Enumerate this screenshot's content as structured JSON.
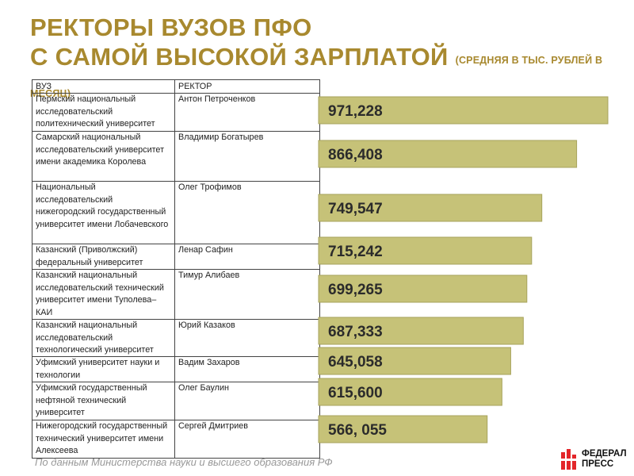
{
  "title": {
    "line1": "РЕКТОРЫ ВУЗОВ ПФО",
    "line2": "С САМОЙ ВЫСОКОЙ ЗАРПЛАТОЙ",
    "subtitle": "(СРЕДНЯЯ В ТЫС. РУБЛЕЙ В МЕСЯЦ)"
  },
  "table": {
    "headers": [
      "ВУЗ",
      "РЕКТОР"
    ],
    "rows": [
      {
        "university": "Пермский национальный исследовательский политехнический университет",
        "rector": "Антон Петроченков"
      },
      {
        "university": "Самарский национальный исследовательский университет имени академика Королева",
        "rector": "Владимир Богатырев"
      },
      {
        "university": "Национальный исследовательский нижегородский государственный университет имени Лобачевского",
        "rector": "Олег Трофимов"
      },
      {
        "university": "Казанский (Приволжский) федеральный университет",
        "rector": "Ленар Сафин"
      },
      {
        "university": "Казанский национальный исследовательский технический университет имени Туполева–КАИ",
        "rector": "Тимур Алибаев"
      },
      {
        "university": "Казанский национальный исследовательский технологический университет",
        "rector": "Юрий Казаков"
      },
      {
        "university": "Уфимский университет науки и технологии",
        "rector": "Вадим Захаров"
      },
      {
        "university": "Уфимский государственный нефтяной технический университет",
        "rector": "Олег Баулин"
      },
      {
        "university": "Нижегородский государственный технический университет имени Алексеева",
        "rector": "Сергей Дмитриев"
      }
    ]
  },
  "chart_data": {
    "type": "bar",
    "orientation": "horizontal",
    "categories": [
      "Антон Петроченков",
      "Владимир Богатырев",
      "Олег Трофимов",
      "Ленар Сафин",
      "Тимур Алибаев",
      "Юрий Казаков",
      "Вадим Захаров",
      "Олег Баулин",
      "Сергей Дмитриев"
    ],
    "values": [
      971.228,
      866.408,
      749.547,
      715.242,
      699.265,
      687.333,
      645.058,
      615.6,
      566.055
    ],
    "value_labels": [
      "971,228",
      "866,408",
      "749,547",
      "715,242",
      "699,265",
      "687,333",
      "645,058",
      "615,600",
      "566, 055"
    ],
    "colors": {
      "bar": "#c6c278",
      "bar_border": "#a7a35c",
      "label": "#2b2b2b"
    }
  },
  "colors": {
    "title": "#a8892f",
    "logo_red": "#e3262a"
  },
  "source": "По данным Министерства науки и высшего образования РФ",
  "logo": {
    "line1": "ФЕДЕРАЛ",
    "line2": "ПРЕСС"
  }
}
